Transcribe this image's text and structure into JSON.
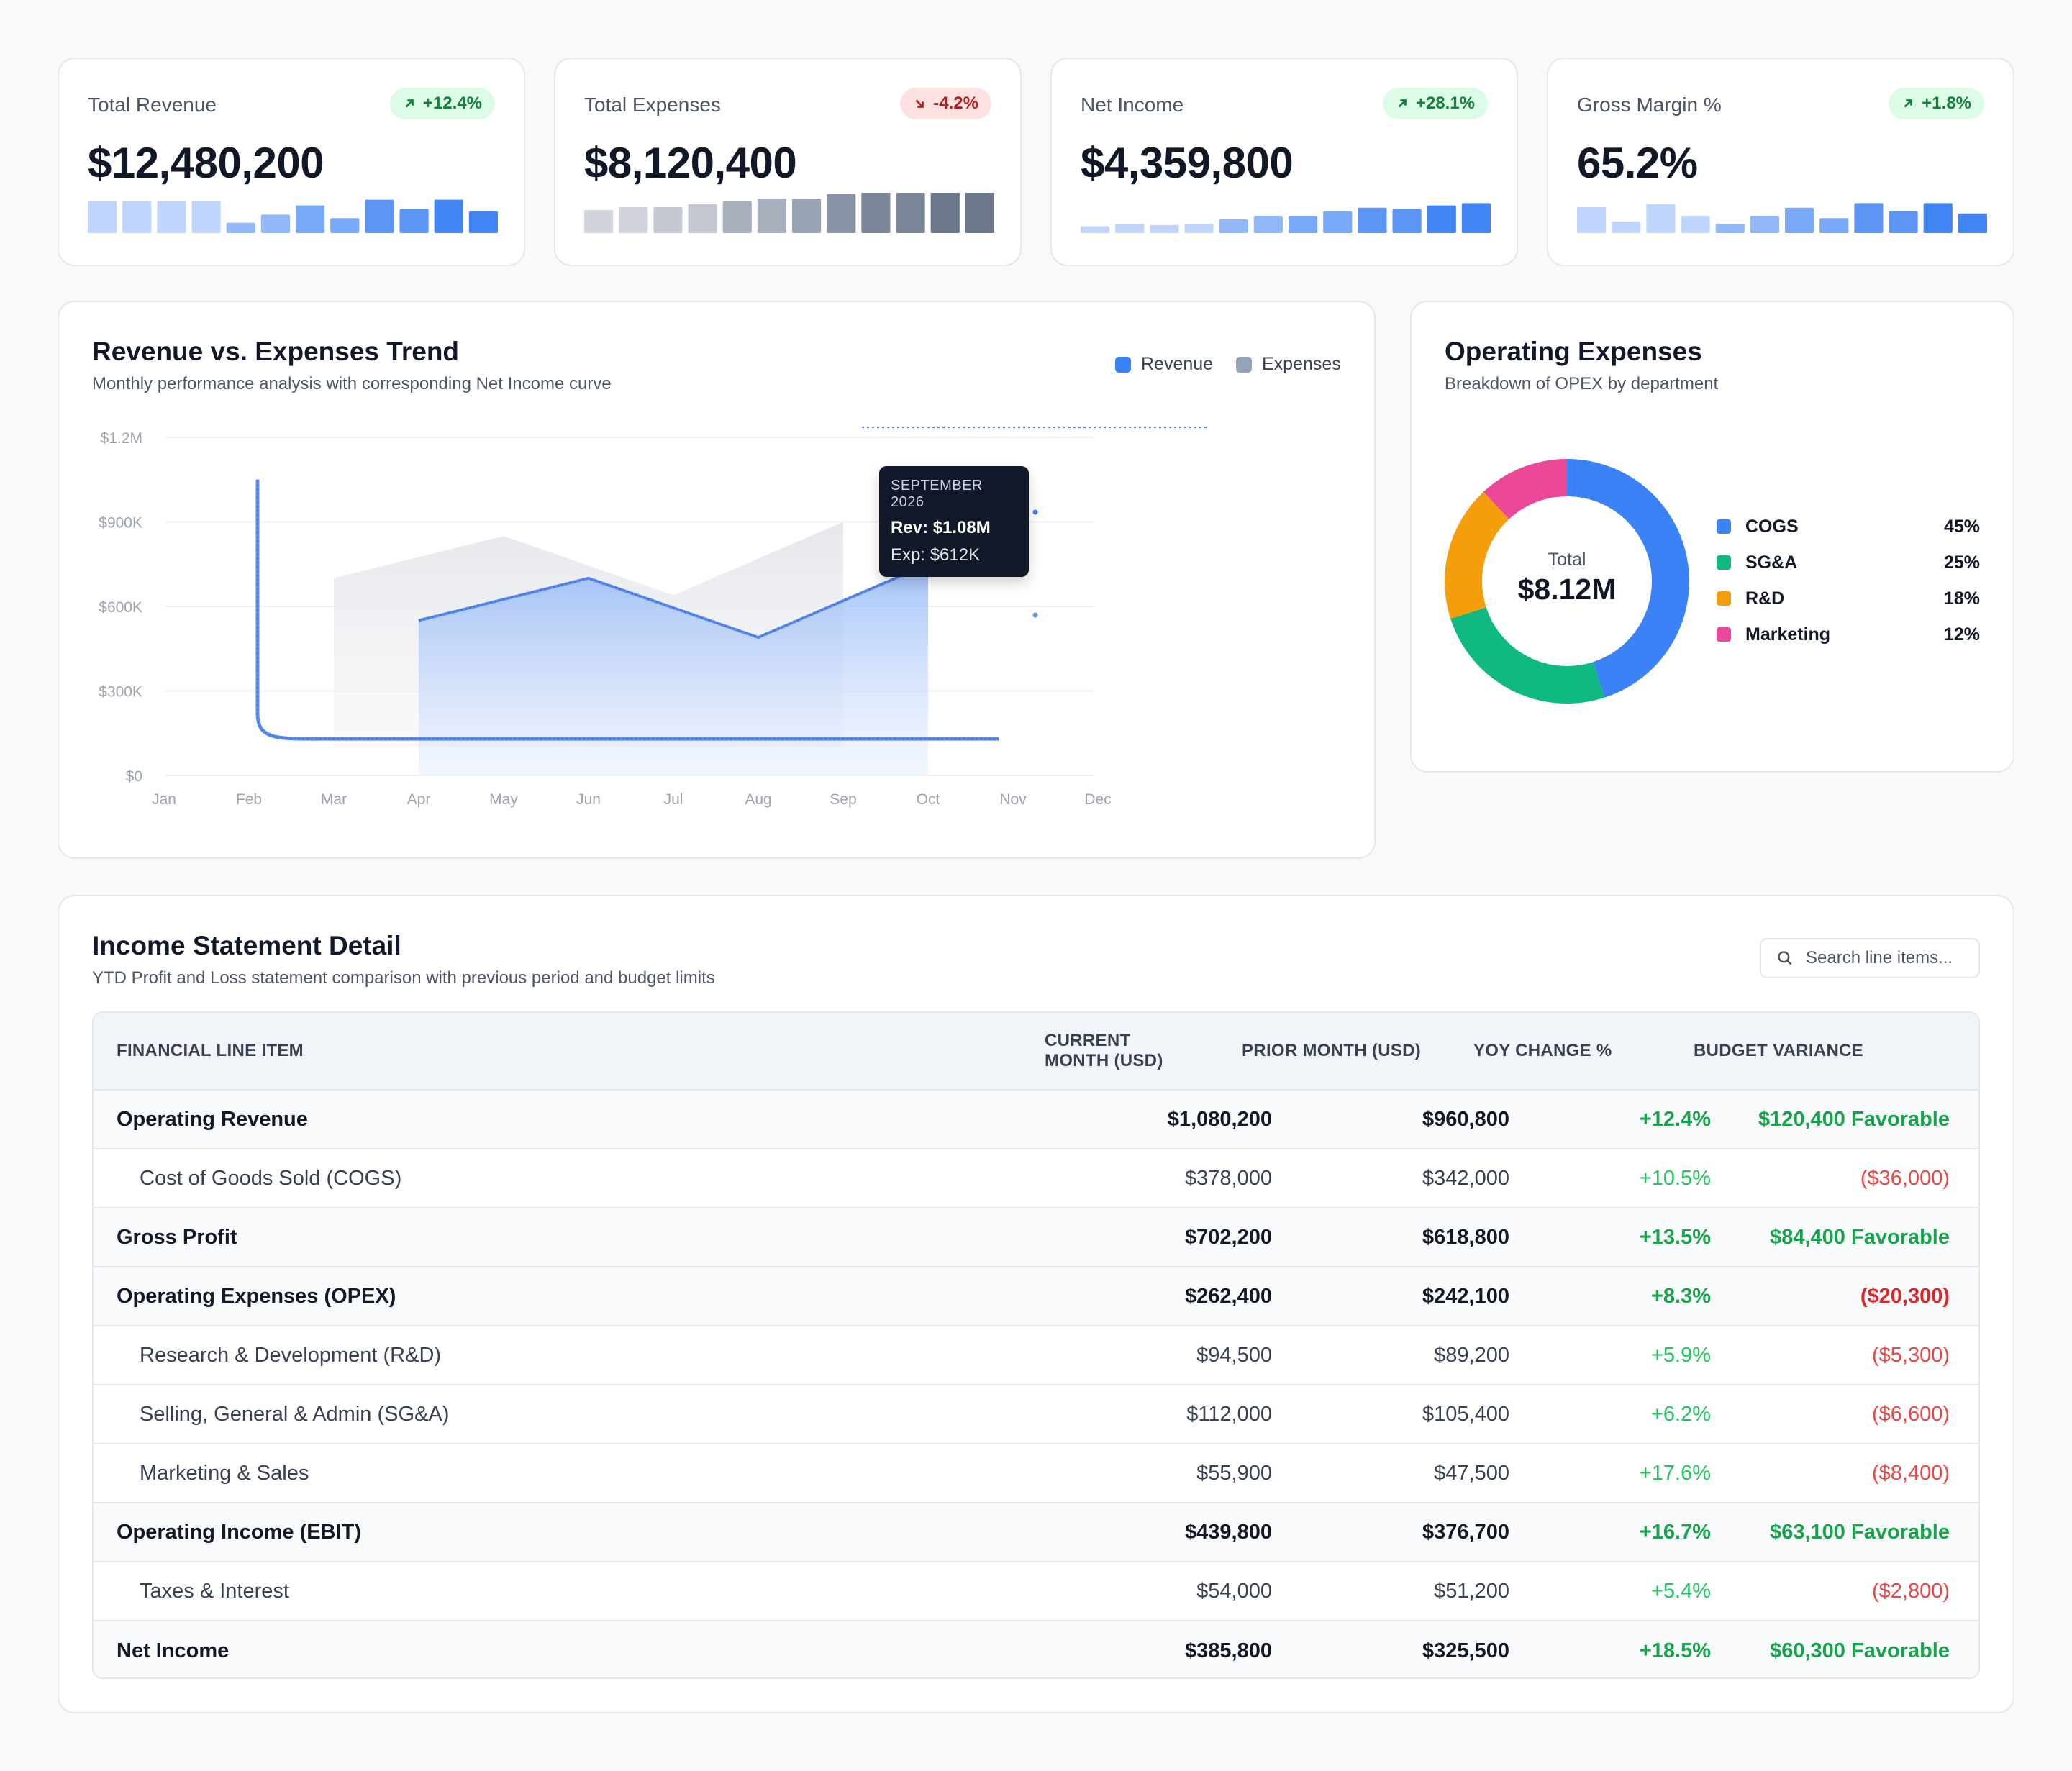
{
  "kpis": [
    {
      "label": "Total Revenue",
      "value": "$12,480,200",
      "change": "+12.4%",
      "direction": "up",
      "spark": [
        0.55,
        0.55,
        0.55,
        0.55,
        0.18,
        0.32,
        0.48,
        0.26,
        0.58,
        0.42,
        0.58,
        0.38
      ],
      "spark_colors": [
        "#bfd5fb",
        "#bfd5fb",
        "#bfd5fb",
        "#bfd5fb",
        "#93b8f8",
        "#93b8f8",
        "#7aa9f7",
        "#7aa9f7",
        "#5d95f5",
        "#5d95f5",
        "#4384f3",
        "#4384f3"
      ]
    },
    {
      "label": "Total Expenses",
      "value": "$8,120,400",
      "change": "-4.2%",
      "direction": "down",
      "spark": [
        0.4,
        0.45,
        0.45,
        0.5,
        0.55,
        0.6,
        0.6,
        0.68,
        0.74,
        0.7,
        0.76,
        0.8
      ],
      "spark_colors": [
        "#d1d5db",
        "#d1d5db",
        "#c4c9d1",
        "#c4c9d1",
        "#a8b0bd",
        "#a8b0bd",
        "#9aa3b2",
        "#8a94a6",
        "#7b8699",
        "#7b8699",
        "#6b778c",
        "#6b778c"
      ]
    },
    {
      "label": "Net Income",
      "value": "$4,359,800",
      "change": "+28.1%",
      "direction": "up",
      "spark": [
        0.12,
        0.16,
        0.14,
        0.16,
        0.24,
        0.3,
        0.3,
        0.38,
        0.44,
        0.42,
        0.48,
        0.52
      ],
      "spark_colors": [
        "#bfd5fb",
        "#bfd5fb",
        "#bfd5fb",
        "#bfd5fb",
        "#93b8f8",
        "#93b8f8",
        "#7aa9f7",
        "#7aa9f7",
        "#5d95f5",
        "#5d95f5",
        "#4384f3",
        "#4384f3"
      ]
    },
    {
      "label": "Gross Margin %",
      "value": "65.2%",
      "change": "+1.8%",
      "direction": "up",
      "spark": [
        0.45,
        0.2,
        0.5,
        0.3,
        0.16,
        0.3,
        0.44,
        0.26,
        0.52,
        0.38,
        0.52,
        0.34
      ],
      "spark_colors": [
        "#bfd5fb",
        "#bfd5fb",
        "#bfd5fb",
        "#bfd5fb",
        "#93b8f8",
        "#93b8f8",
        "#7aa9f7",
        "#7aa9f7",
        "#5d95f5",
        "#5d95f5",
        "#4384f3",
        "#4384f3"
      ]
    }
  ],
  "trend": {
    "title": "Revenue vs. Expenses Trend",
    "subtitle": "Monthly performance analysis with corresponding Net Income curve",
    "legend_revenue": "Revenue",
    "legend_expenses": "Expenses",
    "colors": {
      "revenue": "#3b82f6",
      "expenses": "#94a3b8"
    },
    "tooltip": {
      "title": "SEPTEMBER 2026",
      "rev": "Rev: $1.08M",
      "exp": "Exp: $612K"
    }
  },
  "chart_data": {
    "type": "area",
    "x": [
      "Jan",
      "Feb",
      "Mar",
      "Apr",
      "May",
      "Jun",
      "Jul",
      "Aug",
      "Sep",
      "Oct",
      "Nov",
      "Dec"
    ],
    "yticks": [
      "$1.2M",
      "$900K",
      "$600K",
      "$300K",
      "$0"
    ],
    "ylim": [
      0,
      1200000
    ],
    "series": [
      {
        "name": "Revenue",
        "x": [
          "Apr",
          "Jun",
          "Aug",
          "Oct"
        ],
        "values": [
          550000,
          700000,
          490000,
          750000
        ]
      },
      {
        "name": "Expenses",
        "x": [
          "Mar",
          "May",
          "Jul",
          "Sep"
        ],
        "values": [
          700000,
          850000,
          640000,
          900000
        ]
      }
    ],
    "net_income_curve": {
      "x": [
        "Feb",
        "Feb",
        "Mar",
        "Nov"
      ],
      "values": [
        1050000,
        220000,
        130000,
        130000
      ]
    }
  },
  "opex": {
    "title": "Operating Expenses",
    "subtitle": "Breakdown of OPEX by department",
    "center_label": "Total",
    "center_value": "$8.12M",
    "items": [
      {
        "label": "COGS",
        "pct": "45%",
        "value": 45,
        "color": "#3b82f6"
      },
      {
        "label": "SG&A",
        "pct": "25%",
        "value": 25,
        "color": "#10b981"
      },
      {
        "label": "R&D",
        "pct": "18%",
        "value": 18,
        "color": "#f59e0b"
      },
      {
        "label": "Marketing",
        "pct": "12%",
        "value": 12,
        "color": "#ec4899"
      }
    ]
  },
  "statement": {
    "title": "Income Statement Detail",
    "subtitle": "YTD Profit and Loss statement comparison with previous period and budget limits",
    "search_placeholder": "Search line items...",
    "headers": [
      "FINANCIAL LINE ITEM",
      "CURRENT MONTH (USD)",
      "PRIOR MONTH (USD)",
      "YOY CHANGE %",
      "BUDGET VARIANCE"
    ],
    "rows": [
      {
        "item": "Operating Revenue",
        "current": "$1,080,200",
        "prior": "$960,800",
        "yoy": "+12.4%",
        "variance": "$120,400 Favorable"
      },
      {
        "item": "Cost of Goods Sold (COGS)",
        "current": "$378,000",
        "prior": "$342,000",
        "yoy": "+10.5%",
        "variance": "($36,000)"
      },
      {
        "item": "Gross Profit",
        "current": "$702,200",
        "prior": "$618,800",
        "yoy": "+13.5%",
        "variance": "$84,400 Favorable"
      },
      {
        "item": "Operating Expenses (OPEX)",
        "current": "$262,400",
        "prior": "$242,100",
        "yoy": "+8.3%",
        "variance": "($20,300)"
      },
      {
        "item": "Research & Development (R&D)",
        "current": "$94,500",
        "prior": "$89,200",
        "yoy": "+5.9%",
        "variance": "($5,300)"
      },
      {
        "item": "Selling, General & Admin (SG&A)",
        "current": "$112,000",
        "prior": "$105,400",
        "yoy": "+6.2%",
        "variance": "($6,600)"
      },
      {
        "item": "Marketing & Sales",
        "current": "$55,900",
        "prior": "$47,500",
        "yoy": "+17.6%",
        "variance": "($8,400)"
      },
      {
        "item": "Operating Income (EBIT)",
        "current": "$439,800",
        "prior": "$376,700",
        "yoy": "+16.7%",
        "variance": "$63,100 Favorable"
      },
      {
        "item": "Taxes & Interest",
        "current": "$54,000",
        "prior": "$51,200",
        "yoy": "+5.4%",
        "variance": "($2,800)"
      },
      {
        "item": "Net Income",
        "current": "$385,800",
        "prior": "$325,500",
        "yoy": "+18.5%",
        "variance": "$60,300 Favorable"
      }
    ]
  }
}
